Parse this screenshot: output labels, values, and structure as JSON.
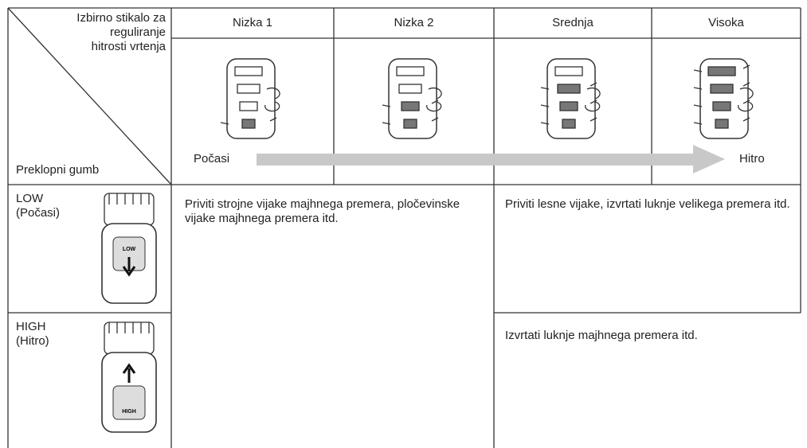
{
  "corner": {
    "top_lines": [
      "Izbirno stikalo za",
      "reguliranje",
      "hitrosti vrtenja"
    ],
    "bottom": "Preklopni gumb"
  },
  "speed_columns": [
    "Nizka 1",
    "Nizka 2",
    "Srednja",
    "Visoka"
  ],
  "scale": {
    "slow": "Počasi",
    "fast": "Hitro"
  },
  "rows": [
    {
      "label": "LOW",
      "sublabel": "(Počasi)",
      "button": "LOW"
    },
    {
      "label": "HIGH",
      "sublabel": "(Hitro)",
      "button": "HIGH"
    }
  ],
  "uses": {
    "low_speeds": "Priviti strojne vijake majhnega premera, pločevinske vijake majhnega premera itd.",
    "high_speeds_low_gear": "Priviti lesne vijake, izvrtati luknje velikega premera itd.",
    "high_speeds_high_gear": "Izvrtati luknje majhnega premera itd."
  }
}
